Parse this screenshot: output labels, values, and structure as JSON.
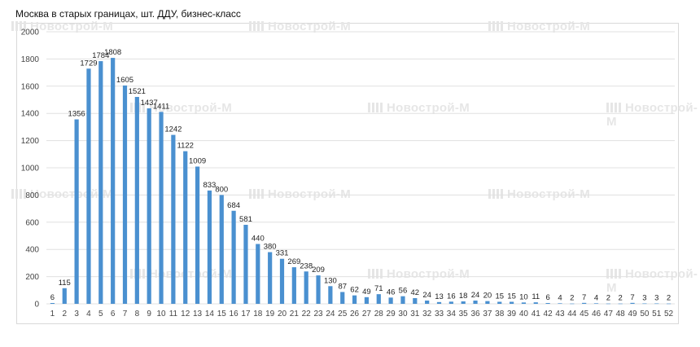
{
  "chart_data": {
    "type": "bar",
    "title": "Москва в старых границах, шт. ДДУ, бизнес-класс",
    "xlabel": "",
    "ylabel": "",
    "ylim": [
      0,
      2000
    ],
    "yticks": [
      0,
      200,
      400,
      600,
      800,
      1000,
      1200,
      1400,
      1600,
      1800,
      2000
    ],
    "grid": true,
    "legend": "none",
    "bar_color": "#4a90d0",
    "categories": [
      "1",
      "2",
      "3",
      "4",
      "5",
      "6",
      "7",
      "8",
      "9",
      "10",
      "11",
      "12",
      "13",
      "14",
      "15",
      "16",
      "17",
      "18",
      "19",
      "20",
      "21",
      "22",
      "23",
      "24",
      "25",
      "26",
      "27",
      "28",
      "29",
      "30",
      "31",
      "32",
      "33",
      "34",
      "35",
      "36",
      "37",
      "38",
      "39",
      "40",
      "41",
      "42",
      "43",
      "44",
      "45",
      "46",
      "47",
      "48",
      "49",
      "50",
      "51",
      "52"
    ],
    "values": [
      6,
      115,
      1356,
      1729,
      1784,
      1808,
      1605,
      1521,
      1437,
      1411,
      1242,
      1122,
      1009,
      833,
      800,
      684,
      581,
      440,
      380,
      331,
      269,
      238,
      209,
      130,
      87,
      62,
      49,
      71,
      46,
      56,
      42,
      24,
      13,
      16,
      18,
      24,
      20,
      15,
      15,
      10,
      11,
      6,
      4,
      2,
      7,
      4,
      2,
      2,
      7,
      3,
      3,
      2
    ]
  },
  "watermark": {
    "text": "Новострой-М",
    "icon": "building-bars-icon",
    "color": "#e6e6e6"
  }
}
